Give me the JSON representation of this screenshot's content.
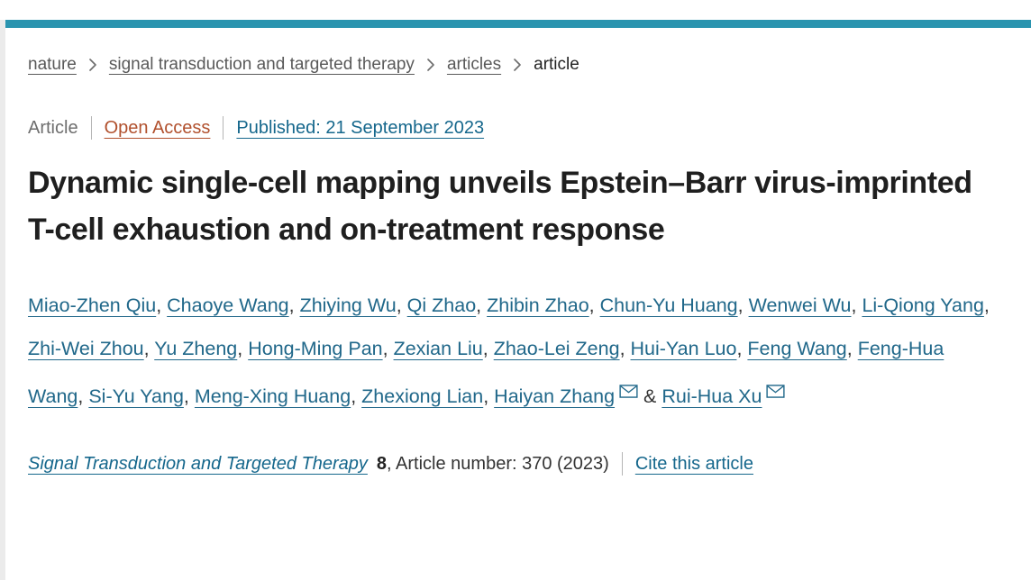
{
  "top_bar": {
    "color": "#2a94af"
  },
  "breadcrumb": {
    "items": [
      {
        "label": "nature",
        "link": true
      },
      {
        "label": "signal transduction and targeted therapy",
        "link": true
      },
      {
        "label": "articles",
        "link": true
      },
      {
        "label": "article",
        "link": false
      }
    ]
  },
  "meta": {
    "type_label": "Article",
    "open_access_label": "Open Access",
    "published_label": "Published: 21 September 2023"
  },
  "title": "Dynamic single-cell mapping unveils Epstein–Barr virus-imprinted T-cell exhaustion and on-treatment response",
  "authors": {
    "names": [
      {
        "name": "Miao-Zhen Qiu"
      },
      {
        "name": "Chaoye Wang"
      },
      {
        "name": "Zhiying Wu"
      },
      {
        "name": "Qi Zhao"
      },
      {
        "name": "Zhibin Zhao"
      },
      {
        "name": "Chun-Yu Huang"
      },
      {
        "name": "Wenwei Wu"
      },
      {
        "name": "Li-Qiong Yang"
      },
      {
        "name": "Zhi-Wei Zhou"
      },
      {
        "name": "Yu Zheng"
      },
      {
        "name": "Hong-Ming Pan"
      },
      {
        "name": "Zexian Liu"
      },
      {
        "name": "Zhao-Lei Zeng"
      },
      {
        "name": "Hui-Yan Luo"
      },
      {
        "name": "Feng Wang"
      },
      {
        "name": "Feng-Hua Wang"
      },
      {
        "name": "Si-Yu Yang"
      },
      {
        "name": "Meng-Xing Huang"
      },
      {
        "name": "Zhexiong Lian"
      },
      {
        "name": "Haiyan Zhang",
        "corresponding": true
      },
      {
        "name": "Rui-Hua Xu",
        "corresponding": true
      }
    ],
    "comma_separator": ", ",
    "last_separator": " & "
  },
  "citation": {
    "journal": "Signal Transduction and Targeted Therapy",
    "volume": "8",
    "details": ", Article number: 370 (2023)",
    "cite_label": "Cite this article"
  },
  "colors": {
    "accent_bar": "#2a94af",
    "link_blue": "#15678c",
    "open_access_orange": "#b1502d",
    "breadcrumb_gray": "#595959",
    "title_dark": "#1f1f1f"
  }
}
